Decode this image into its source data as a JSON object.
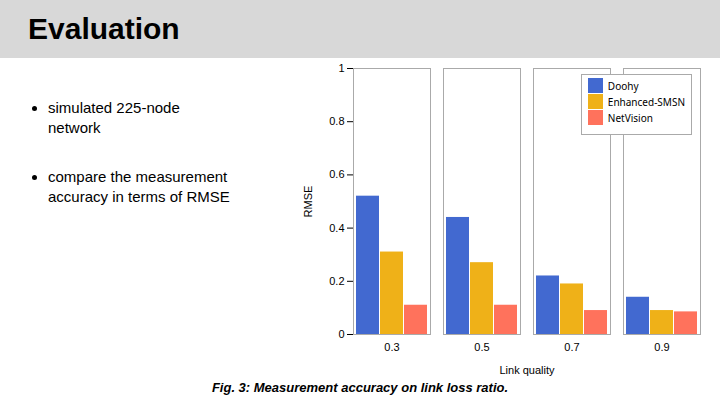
{
  "chart_data": {
    "type": "bar",
    "title": "Evaluation",
    "annotations": [
      "simulated 225-node\nnetwork",
      "compare the measurement\naccuracy in terms of RMSE"
    ],
    "caption": "Fig. 3: Measurement accuracy on link loss ratio.",
    "categories": [
      "0.3",
      "0.5",
      "0.7",
      "0.9"
    ],
    "series": [
      {
        "name": "Doohy",
        "values": [
          0.52,
          0.44,
          0.22,
          0.14
        ]
      },
      {
        "name": "Enhanced-SMSN",
        "values": [
          0.31,
          0.27,
          0.19,
          0.09
        ]
      },
      {
        "name": "NetVision",
        "values": [
          0.11,
          0.11,
          0.09,
          0.085
        ]
      }
    ],
    "xlabel": "Link quality",
    "ylabel": "RMSE",
    "ylim": [
      0,
      1.0
    ],
    "yticks": [
      0,
      0.2,
      0.4,
      0.6,
      0.8,
      1
    ],
    "grid": false,
    "legend": "upper right"
  }
}
